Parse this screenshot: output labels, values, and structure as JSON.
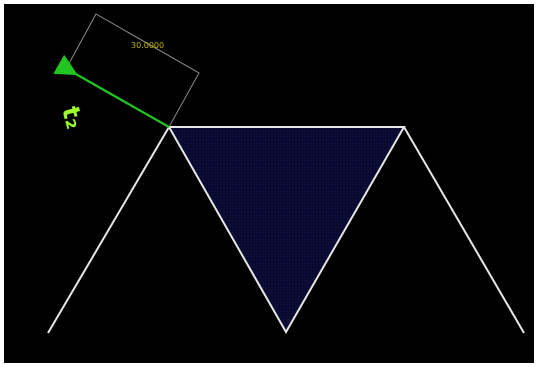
{
  "diagram": {
    "dimension_value": "30.0000",
    "vector_label": "t₂",
    "colors": {
      "background": "#000000",
      "outline": "#e6e6e6",
      "fill": "#0b0b3d",
      "dimension_box": "#8c8c8c",
      "dimension_text": "#c8b400",
      "vector": "#21c421",
      "vector_label": "#9cff2a"
    }
  }
}
